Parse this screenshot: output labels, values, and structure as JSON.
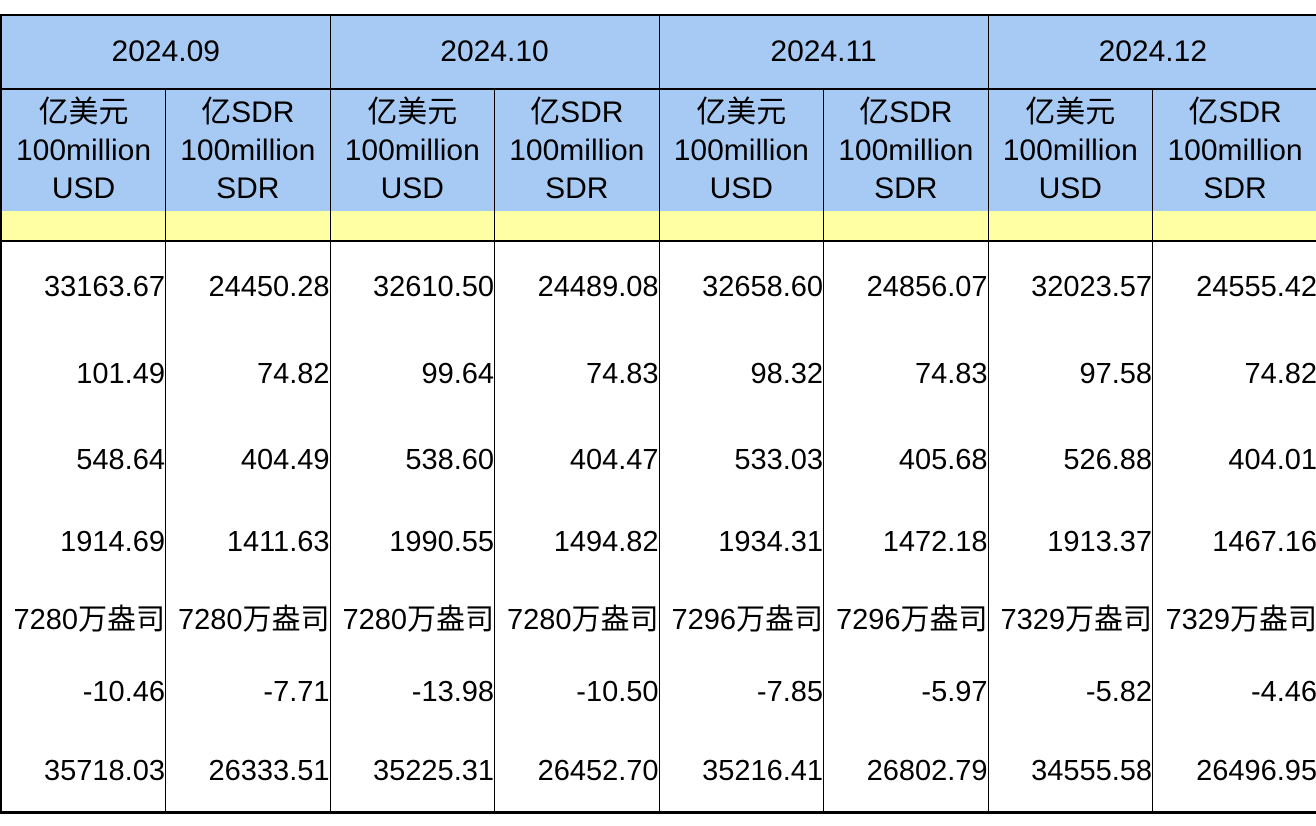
{
  "colors": {
    "header_blue": "#A7CAF4",
    "highlight_yellow": "#FFFFA3",
    "border": "#000000"
  },
  "chart_data": {
    "type": "table",
    "months": [
      "2024.09",
      "2024.10",
      "2024.11",
      "2024.12"
    ],
    "unit_headers": [
      "亿美元\n100million\nUSD",
      "亿SDR\n100million\nSDR",
      "亿美元\n100million\nUSD",
      "亿SDR\n100million\nSDR",
      "亿美元\n100million\nUSD",
      "亿SDR\n100million\nSDR",
      "亿美元\n100million\nUSD",
      "亿SDR\n100million\nSDR"
    ],
    "highlight_row": [
      "",
      "",
      "",
      "",
      "",
      "",
      "",
      ""
    ],
    "rows": [
      [
        "33163.67",
        "24450.28",
        "32610.50",
        "24489.08",
        "32658.60",
        "24856.07",
        "32023.57",
        "24555.42"
      ],
      [
        "101.49",
        "74.82",
        "99.64",
        "74.83",
        "98.32",
        "74.83",
        "97.58",
        "74.82"
      ],
      [
        "548.64",
        "404.49",
        "538.60",
        "404.47",
        "533.03",
        "405.68",
        "526.88",
        "404.01"
      ],
      [
        "1914.69",
        "1411.63",
        "1990.55",
        "1494.82",
        "1934.31",
        "1472.18",
        "1913.37",
        "1467.16"
      ],
      [
        "7280万盎司",
        "7280万盎司",
        "7280万盎司",
        "7280万盎司",
        "7296万盎司",
        "7296万盎司",
        "7329万盎司",
        "7329万盎司"
      ],
      [
        "-10.46",
        "-7.71",
        "-13.98",
        "-10.50",
        "-7.85",
        "-5.97",
        "-5.82",
        "-4.46"
      ],
      [
        "35718.03",
        "26333.51",
        "35225.31",
        "26452.70",
        "35216.41",
        "26802.79",
        "34555.58",
        "26496.95"
      ]
    ],
    "layout": {
      "columns_per_month": 2,
      "grid": "vertical borders only in data area; highlight row is empty",
      "legend_position": "none"
    }
  }
}
